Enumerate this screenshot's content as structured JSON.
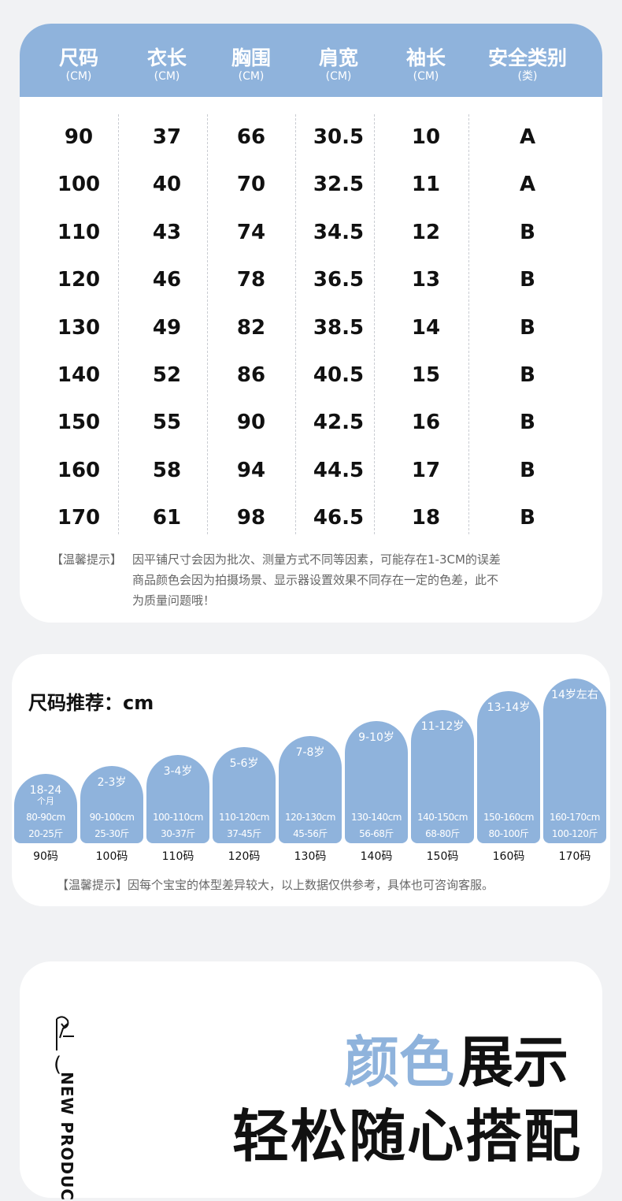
{
  "size_table": {
    "headers": [
      [
        "尺码",
        "(CM)"
      ],
      [
        "衣长",
        "(CM)"
      ],
      [
        "胸围",
        "(CM)"
      ],
      [
        "肩宽",
        "(CM)"
      ],
      [
        "袖长",
        "(CM)"
      ],
      [
        "安全类别",
        "(类)"
      ]
    ],
    "rows": [
      [
        "90",
        "37",
        "66",
        "30.5",
        "10",
        "A"
      ],
      [
        "100",
        "40",
        "70",
        "32.5",
        "11",
        "A"
      ],
      [
        "110",
        "43",
        "74",
        "34.5",
        "12",
        "B"
      ],
      [
        "120",
        "46",
        "78",
        "36.5",
        "13",
        "B"
      ],
      [
        "130",
        "49",
        "82",
        "38.5",
        "14",
        "B"
      ],
      [
        "140",
        "52",
        "86",
        "40.5",
        "15",
        "B"
      ],
      [
        "150",
        "55",
        "90",
        "42.5",
        "16",
        "B"
      ],
      [
        "160",
        "58",
        "94",
        "44.5",
        "17",
        "B"
      ],
      [
        "170",
        "61",
        "98",
        "46.5",
        "18",
        "B"
      ]
    ],
    "note_label": "【温馨提示】",
    "note_lines": [
      "因平铺尺寸会因为批次、测量方式不同等因素，可能存在1-3CM的误差",
      "商品颜色会因为拍摄场景、显示器设置效果不同存在一定的色差，此不",
      "为质量问题哦！"
    ]
  },
  "recommend": {
    "title": "尺码推荐：cm",
    "items": [
      {
        "age_lines": [
          "18-24",
          "个月"
        ],
        "height": "80-90cm",
        "weight": "20-25斤",
        "size": "90码"
      },
      {
        "age_lines": [
          "2-3岁"
        ],
        "height": "90-100cm",
        "weight": "25-30斤",
        "size": "100码"
      },
      {
        "age_lines": [
          "3-4岁"
        ],
        "height": "100-110cm",
        "weight": "30-37斤",
        "size": "110码"
      },
      {
        "age_lines": [
          "5-6岁"
        ],
        "height": "110-120cm",
        "weight": "37-45斤",
        "size": "120码"
      },
      {
        "age_lines": [
          "7-8岁"
        ],
        "height": "120-130cm",
        "weight": "45-56斤",
        "size": "130码"
      },
      {
        "age_lines": [
          "9-10岁"
        ],
        "height": "130-140cm",
        "weight": "56-68斤",
        "size": "140码"
      },
      {
        "age_lines": [
          "11-12岁"
        ],
        "height": "140-150cm",
        "weight": "68-80斤",
        "size": "150码"
      },
      {
        "age_lines": [
          "13-14岁"
        ],
        "height": "150-160cm",
        "weight": "80-100斤",
        "size": "160码"
      },
      {
        "age_lines": [
          "14岁左右"
        ],
        "height": "160-170cm",
        "weight": "100-120斤",
        "size": "170码"
      }
    ],
    "note": "【温馨提示】因每个宝宝的体型差异较大，以上数据仅供参考，具体也可咨询客服。"
  },
  "color_section": {
    "title_blue": "颜色",
    "title_black": "展示",
    "subtitle": "轻松随心搭配",
    "side_text": "NEW PRODUC"
  }
}
